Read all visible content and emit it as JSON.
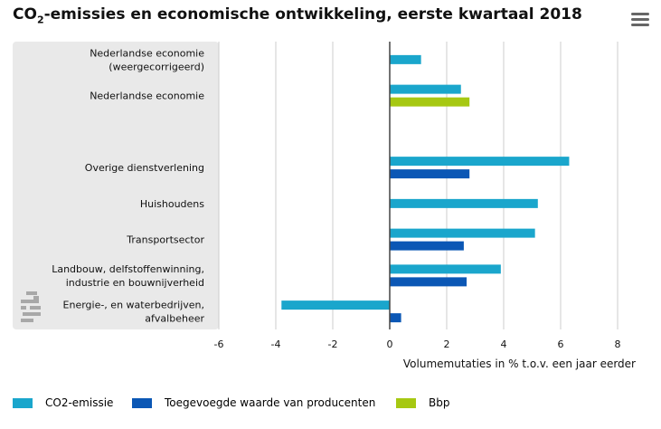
{
  "title": {
    "pre": "CO",
    "sub": "2",
    "post": "-emissies en economische ontwikkeling, eerste kwartaal 2018"
  },
  "menu_icon": "hamburger-menu-icon",
  "logo": {
    "icon": "cbs-logo",
    "text": "cbs"
  },
  "colors": {
    "co2": "#1aa6cc",
    "tw": "#0b57b5",
    "bbp": "#a6c812",
    "panel": "#e9e9e9",
    "grid": "#cccccc",
    "zero": "#444444"
  },
  "chart_data": {
    "type": "bar",
    "orientation": "horizontal",
    "title": "CO2-emissies en economische ontwikkeling, eerste kwartaal 2018",
    "xlabel": "Volumemutaties in % t.o.v. een jaar eerder",
    "xlim": [
      -6,
      8
    ],
    "xticks": [
      -6,
      -4,
      -2,
      0,
      2,
      4,
      6,
      8
    ],
    "grid": true,
    "legend_position": "bottom",
    "categories": [
      [
        "Nederlandse economie",
        "(weergecorrigeerd)"
      ],
      [
        "Nederlandse economie"
      ],
      [
        ""
      ],
      [
        "Overige dienstverlening"
      ],
      [
        "Huishoudens"
      ],
      [
        "Transportsector"
      ],
      [
        "Landbouw, delfstoffenwinning,",
        "industrie en bouwnijverheid"
      ],
      [
        "Energie-, en waterbedrijven,",
        "afvalbeheer"
      ]
    ],
    "series": [
      {
        "name": "CO2-emissie",
        "color": "#1aa6cc",
        "values": [
          1.1,
          2.5,
          null,
          6.3,
          5.2,
          5.1,
          3.9,
          -3.8
        ]
      },
      {
        "name": "Toegevoegde waarde van producenten",
        "color": "#0b57b5",
        "values": [
          null,
          null,
          null,
          2.8,
          null,
          2.6,
          2.7,
          0.4
        ]
      },
      {
        "name": "Bbp",
        "color": "#a6c812",
        "values": [
          null,
          2.8,
          null,
          null,
          null,
          null,
          null,
          null
        ]
      }
    ]
  }
}
